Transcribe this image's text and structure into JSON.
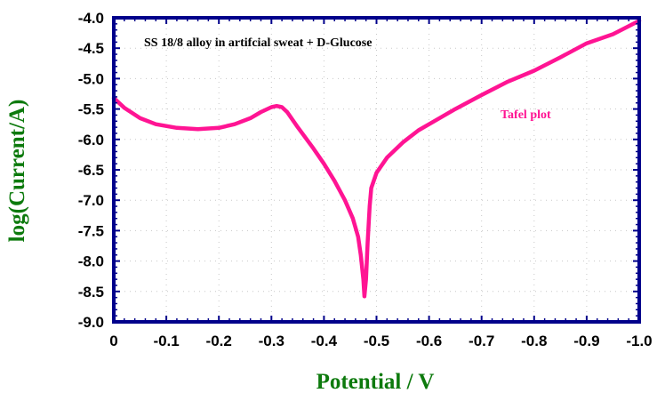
{
  "colors": {
    "frame": "#00008b",
    "series": "#ff1493",
    "axis_title": "#0d7a0d",
    "grid": "#c8c8c8",
    "background": "#ffffff"
  },
  "chart_data": {
    "type": "line",
    "title": "",
    "xlabel": "Potential / V",
    "ylabel": "log(Current/A)",
    "x_reversed": true,
    "xlim": [
      0,
      -1.0
    ],
    "ylim": [
      -9.0,
      -4.0
    ],
    "grid": true,
    "grid_style": "dotted",
    "x_ticks": [
      "0",
      "-0.1",
      "-0.2",
      "-0.3",
      "-0.4",
      "-0.5",
      "-0.6",
      "-0.7",
      "-0.8",
      "-0.9",
      "-1.0"
    ],
    "y_ticks": [
      "-4.0",
      "-4.5",
      "-5.0",
      "-5.5",
      "-6.0",
      "-6.5",
      "-7.0",
      "-7.5",
      "-8.0",
      "-8.5",
      "-9.0"
    ],
    "annotations": [
      {
        "text": "SS 18/8 alloy in artifcial sweat + D-Glucose",
        "role": "description"
      },
      {
        "text": "Tafel plot",
        "role": "series-label"
      }
    ],
    "series": [
      {
        "name": "Tafel plot",
        "color": "#ff1493",
        "x": [
          0,
          -0.02,
          -0.05,
          -0.08,
          -0.12,
          -0.16,
          -0.2,
          -0.23,
          -0.26,
          -0.28,
          -0.3,
          -0.31,
          -0.32,
          -0.33,
          -0.35,
          -0.38,
          -0.4,
          -0.42,
          -0.44,
          -0.455,
          -0.465,
          -0.47,
          -0.475,
          -0.477,
          -0.48,
          -0.483,
          -0.487,
          -0.49,
          -0.5,
          -0.52,
          -0.55,
          -0.58,
          -0.6,
          -0.65,
          -0.7,
          -0.75,
          -0.8,
          -0.85,
          -0.9,
          -0.95,
          -1.0
        ],
        "y": [
          -5.32,
          -5.48,
          -5.65,
          -5.75,
          -5.81,
          -5.83,
          -5.81,
          -5.75,
          -5.65,
          -5.55,
          -5.47,
          -5.45,
          -5.47,
          -5.55,
          -5.8,
          -6.15,
          -6.4,
          -6.68,
          -7.0,
          -7.3,
          -7.6,
          -7.9,
          -8.3,
          -8.58,
          -8.3,
          -7.7,
          -7.1,
          -6.8,
          -6.55,
          -6.3,
          -6.05,
          -5.85,
          -5.75,
          -5.5,
          -5.27,
          -5.05,
          -4.87,
          -4.65,
          -4.42,
          -4.27,
          -4.05
        ]
      }
    ]
  }
}
